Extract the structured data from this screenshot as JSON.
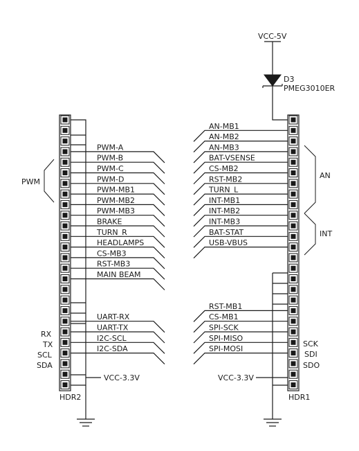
{
  "supply": {
    "vcc5": "VCC-5V",
    "vcc33_left": "VCC-3.3V",
    "vcc33_right": "VCC-3.3V"
  },
  "diode": {
    "ref": "D3",
    "part": "PMEG3010ER"
  },
  "headers": {
    "left": "HDR2",
    "right": "HDR1"
  },
  "left_signals": [
    {
      "pin": 4,
      "label": "PWM-A"
    },
    {
      "pin": 5,
      "label": "PWM-B"
    },
    {
      "pin": 6,
      "label": "PWM-C"
    },
    {
      "pin": 7,
      "label": "PWM-D"
    },
    {
      "pin": 8,
      "label": "PWM-MB1"
    },
    {
      "pin": 9,
      "label": "PWM-MB2"
    },
    {
      "pin": 10,
      "label": "PWM-MB3"
    },
    {
      "pin": 11,
      "label": "BRAKE"
    },
    {
      "pin": 12,
      "label": "TURN_R"
    },
    {
      "pin": 13,
      "label": "HEADLAMPS"
    },
    {
      "pin": 14,
      "label": "CS-MB3"
    },
    {
      "pin": 15,
      "label": "RST-MB3"
    },
    {
      "pin": 16,
      "label": "MAIN BEAM"
    },
    {
      "pin": 20,
      "label": "UART-RX"
    },
    {
      "pin": 21,
      "label": "UART-TX"
    },
    {
      "pin": 22,
      "label": "I2C-SCL"
    },
    {
      "pin": 23,
      "label": "I2C-SDA"
    }
  ],
  "right_signals": [
    {
      "pin": 2,
      "label": "AN-MB1"
    },
    {
      "pin": 3,
      "label": "AN-MB2"
    },
    {
      "pin": 4,
      "label": "AN-MB3"
    },
    {
      "pin": 5,
      "label": "BAT-VSENSE"
    },
    {
      "pin": 6,
      "label": "CS-MB2"
    },
    {
      "pin": 7,
      "label": "RST-MB2"
    },
    {
      "pin": 8,
      "label": "TURN_L"
    },
    {
      "pin": 9,
      "label": "INT-MB1"
    },
    {
      "pin": 10,
      "label": "INT-MB2"
    },
    {
      "pin": 11,
      "label": "INT-MB3"
    },
    {
      "pin": 12,
      "label": "BAT-STAT"
    },
    {
      "pin": 13,
      "label": "USB-VBUS"
    },
    {
      "pin": 19,
      "label": "RST-MB1"
    },
    {
      "pin": 20,
      "label": "CS-MB1"
    },
    {
      "pin": 21,
      "label": "SPI-SCK"
    },
    {
      "pin": 22,
      "label": "SPI-MISO"
    },
    {
      "pin": 23,
      "label": "SPI-MOSI"
    }
  ],
  "groups": {
    "pwm": "PWM",
    "an": "AN",
    "int": "INT"
  },
  "left_side_labels": [
    "RX",
    "TX",
    "SCL",
    "SDA"
  ],
  "right_side_labels": [
    "SCK",
    "SDI",
    "SDO"
  ]
}
